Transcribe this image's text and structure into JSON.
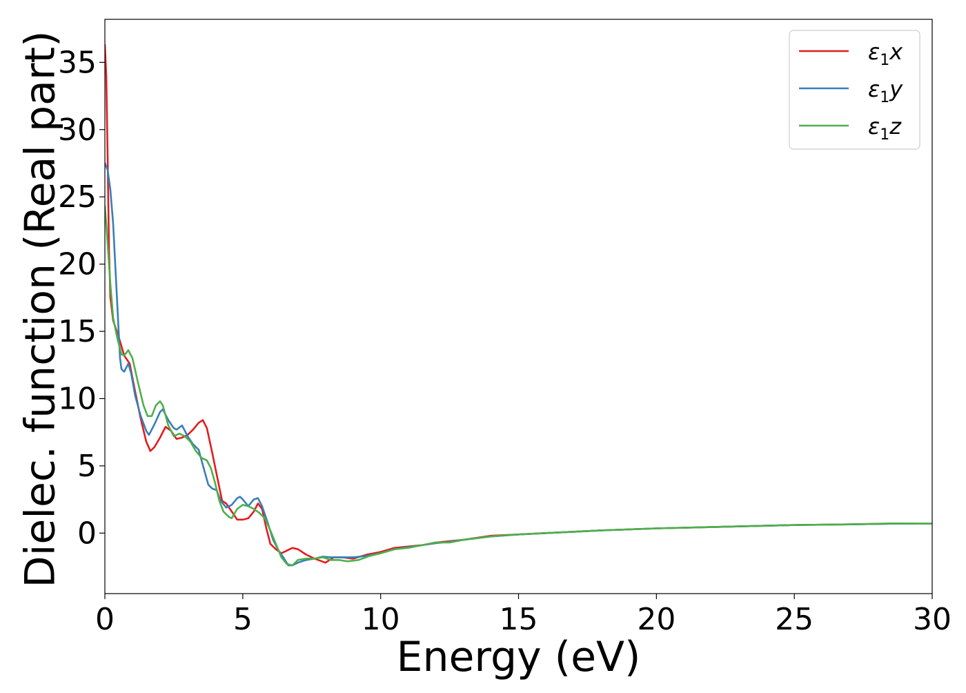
{
  "chart_data": {
    "type": "line",
    "title": "",
    "xlabel": "Energy (eV)",
    "ylabel": "Dielec. function (Real part)",
    "xlim": [
      0,
      30
    ],
    "ylim": [
      -4.5,
      38.2
    ],
    "xticks": [
      0,
      5,
      10,
      15,
      20,
      25,
      30
    ],
    "yticks": [
      0,
      5,
      10,
      15,
      20,
      25,
      30,
      35
    ],
    "grid": false,
    "legend_position": "top-right",
    "series": [
      {
        "name": "ε₁x",
        "legend_base": "ε",
        "legend_sub": "1",
        "legend_suffix": "x",
        "color": "#e41a1c",
        "points": [
          [
            0,
            36.3
          ],
          [
            0.05,
            34
          ],
          [
            0.1,
            28
          ],
          [
            0.15,
            21
          ],
          [
            0.2,
            17.5
          ],
          [
            0.3,
            15.8
          ],
          [
            0.5,
            14.6
          ],
          [
            0.7,
            13.2
          ],
          [
            0.9,
            12.6
          ],
          [
            1.1,
            10.5
          ],
          [
            1.3,
            8.5
          ],
          [
            1.5,
            6.8
          ],
          [
            1.65,
            6.1
          ],
          [
            1.8,
            6.4
          ],
          [
            2.0,
            7.1
          ],
          [
            2.2,
            7.9
          ],
          [
            2.4,
            7.6
          ],
          [
            2.6,
            7.0
          ],
          [
            2.8,
            7.1
          ],
          [
            3.0,
            7.3
          ],
          [
            3.2,
            7.7
          ],
          [
            3.4,
            8.2
          ],
          [
            3.55,
            8.4
          ],
          [
            3.7,
            7.8
          ],
          [
            3.9,
            5.9
          ],
          [
            4.1,
            3.9
          ],
          [
            4.25,
            2.4
          ],
          [
            4.4,
            2.2
          ],
          [
            4.6,
            1.6
          ],
          [
            4.8,
            1.0
          ],
          [
            5.0,
            1.0
          ],
          [
            5.2,
            1.1
          ],
          [
            5.4,
            1.6
          ],
          [
            5.55,
            2.2
          ],
          [
            5.7,
            1.8
          ],
          [
            5.85,
            0.4
          ],
          [
            6.0,
            -0.8
          ],
          [
            6.2,
            -1.2
          ],
          [
            6.4,
            -1.5
          ],
          [
            6.6,
            -1.3
          ],
          [
            6.8,
            -1.1
          ],
          [
            7.0,
            -1.2
          ],
          [
            7.3,
            -1.6
          ],
          [
            7.6,
            -1.9
          ],
          [
            8.0,
            -2.2
          ],
          [
            8.3,
            -1.8
          ],
          [
            8.6,
            -1.8
          ],
          [
            9.0,
            -1.9
          ],
          [
            9.5,
            -1.6
          ],
          [
            10.0,
            -1.4
          ],
          [
            10.5,
            -1.1
          ],
          [
            11.0,
            -1.0
          ],
          [
            11.5,
            -0.9
          ],
          [
            12.0,
            -0.7
          ],
          [
            12.5,
            -0.6
          ],
          [
            13.0,
            -0.5
          ],
          [
            14.0,
            -0.2
          ],
          [
            15.0,
            -0.1
          ],
          [
            16.0,
            0.0
          ],
          [
            18.0,
            0.2
          ],
          [
            20.0,
            0.35
          ],
          [
            22.0,
            0.45
          ],
          [
            25.0,
            0.6
          ],
          [
            27.0,
            0.65
          ],
          [
            28.5,
            0.7
          ],
          [
            30.0,
            0.7
          ]
        ]
      },
      {
        "name": "ε₁y",
        "legend_base": "ε",
        "legend_sub": "1",
        "legend_suffix": "y",
        "color": "#377eb8",
        "points": [
          [
            0,
            27.5
          ],
          [
            0.1,
            27
          ],
          [
            0.2,
            25.5
          ],
          [
            0.3,
            23
          ],
          [
            0.4,
            19
          ],
          [
            0.5,
            15
          ],
          [
            0.55,
            13
          ],
          [
            0.6,
            12.2
          ],
          [
            0.7,
            12.0
          ],
          [
            0.85,
            12.6
          ],
          [
            0.95,
            11.9
          ],
          [
            1.1,
            10.2
          ],
          [
            1.3,
            8.7
          ],
          [
            1.5,
            7.6
          ],
          [
            1.6,
            7.3
          ],
          [
            1.8,
            8.1
          ],
          [
            2.0,
            9.0
          ],
          [
            2.1,
            9.2
          ],
          [
            2.3,
            8.4
          ],
          [
            2.5,
            7.8
          ],
          [
            2.6,
            7.7
          ],
          [
            2.8,
            8.0
          ],
          [
            3.0,
            7.2
          ],
          [
            3.2,
            6.6
          ],
          [
            3.4,
            6.2
          ],
          [
            3.6,
            4.7
          ],
          [
            3.75,
            3.6
          ],
          [
            3.9,
            3.3
          ],
          [
            4.05,
            3.2
          ],
          [
            4.2,
            2.4
          ],
          [
            4.4,
            1.9
          ],
          [
            4.6,
            2.1
          ],
          [
            4.8,
            2.6
          ],
          [
            4.9,
            2.7
          ],
          [
            5.0,
            2.5
          ],
          [
            5.2,
            2.0
          ],
          [
            5.4,
            2.5
          ],
          [
            5.55,
            2.6
          ],
          [
            5.7,
            2.0
          ],
          [
            5.9,
            0.8
          ],
          [
            6.1,
            -0.5
          ],
          [
            6.3,
            -1.3
          ],
          [
            6.5,
            -1.9
          ],
          [
            6.65,
            -2.4
          ],
          [
            6.8,
            -2.4
          ],
          [
            7.0,
            -2.2
          ],
          [
            7.3,
            -2.0
          ],
          [
            7.6,
            -1.9
          ],
          [
            7.9,
            -1.75
          ],
          [
            8.2,
            -1.8
          ],
          [
            8.5,
            -1.8
          ],
          [
            9.0,
            -1.8
          ],
          [
            9.5,
            -1.7
          ],
          [
            10.0,
            -1.5
          ],
          [
            10.5,
            -1.2
          ],
          [
            11.0,
            -1.05
          ],
          [
            11.5,
            -0.9
          ],
          [
            12.0,
            -0.75
          ],
          [
            12.5,
            -0.65
          ],
          [
            13.0,
            -0.5
          ],
          [
            14.0,
            -0.25
          ],
          [
            15.0,
            -0.1
          ],
          [
            16.0,
            0.0
          ],
          [
            18.0,
            0.2
          ],
          [
            20.0,
            0.35
          ],
          [
            22.0,
            0.45
          ],
          [
            25.0,
            0.6
          ],
          [
            27.0,
            0.65
          ],
          [
            28.5,
            0.7
          ],
          [
            30.0,
            0.7
          ]
        ]
      },
      {
        "name": "ε₁z",
        "legend_base": "ε",
        "legend_sub": "1",
        "legend_suffix": "z",
        "color": "#4daf4a",
        "points": [
          [
            0,
            24.3
          ],
          [
            0.05,
            23
          ],
          [
            0.1,
            21.5
          ],
          [
            0.2,
            18.5
          ],
          [
            0.3,
            16.0
          ],
          [
            0.45,
            14.5
          ],
          [
            0.6,
            13.3
          ],
          [
            0.7,
            13.2
          ],
          [
            0.85,
            13.6
          ],
          [
            1.0,
            13.0
          ],
          [
            1.2,
            11.2
          ],
          [
            1.4,
            9.5
          ],
          [
            1.55,
            8.7
          ],
          [
            1.7,
            8.7
          ],
          [
            1.85,
            9.5
          ],
          [
            2.0,
            9.8
          ],
          [
            2.1,
            9.5
          ],
          [
            2.3,
            8.0
          ],
          [
            2.5,
            7.2
          ],
          [
            2.7,
            7.4
          ],
          [
            2.9,
            7.2
          ],
          [
            3.1,
            6.8
          ],
          [
            3.3,
            6.1
          ],
          [
            3.5,
            5.6
          ],
          [
            3.7,
            5.4
          ],
          [
            3.85,
            4.8
          ],
          [
            4.0,
            3.7
          ],
          [
            4.15,
            2.4
          ],
          [
            4.3,
            1.6
          ],
          [
            4.5,
            1.2
          ],
          [
            4.6,
            1.1
          ],
          [
            4.8,
            1.8
          ],
          [
            5.0,
            2.1
          ],
          [
            5.2,
            2.0
          ],
          [
            5.4,
            1.8
          ],
          [
            5.6,
            1.5
          ],
          [
            5.8,
            1.1
          ],
          [
            6.0,
            0.2
          ],
          [
            6.2,
            -0.8
          ],
          [
            6.4,
            -1.8
          ],
          [
            6.6,
            -2.3
          ],
          [
            6.8,
            -2.4
          ],
          [
            7.0,
            -2.0
          ],
          [
            7.3,
            -1.9
          ],
          [
            7.6,
            -1.9
          ],
          [
            7.9,
            -1.8
          ],
          [
            8.2,
            -2.0
          ],
          [
            8.5,
            -2.0
          ],
          [
            8.8,
            -2.1
          ],
          [
            9.2,
            -2.0
          ],
          [
            9.6,
            -1.7
          ],
          [
            10.0,
            -1.5
          ],
          [
            10.5,
            -1.2
          ],
          [
            11.0,
            -1.1
          ],
          [
            11.5,
            -0.9
          ],
          [
            12.0,
            -0.7
          ],
          [
            12.5,
            -0.7
          ],
          [
            13.0,
            -0.5
          ],
          [
            14.0,
            -0.25
          ],
          [
            15.0,
            -0.1
          ],
          [
            16.0,
            0.0
          ],
          [
            18.0,
            0.2
          ],
          [
            20.0,
            0.35
          ],
          [
            22.0,
            0.45
          ],
          [
            25.0,
            0.6
          ],
          [
            27.0,
            0.65
          ],
          [
            28.5,
            0.72
          ],
          [
            30.0,
            0.7
          ]
        ]
      }
    ]
  }
}
